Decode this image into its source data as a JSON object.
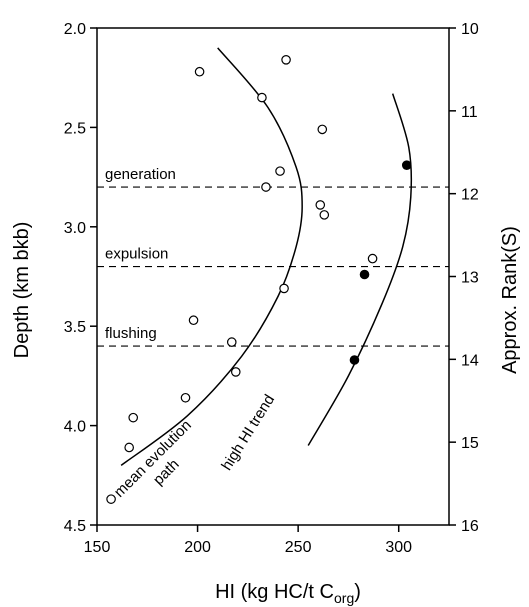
{
  "chart_data": {
    "type": "scatter",
    "xlabel": "HI (kg HC/t C",
    "xlabel_sub": "org",
    "xlabel_close": ")",
    "ylabel_left": "Depth (km bkb)",
    "ylabel_right": "Approx. Rank(S)",
    "xlim": [
      150,
      325
    ],
    "ylim": [
      2.0,
      4.5
    ],
    "y_reversed": true,
    "rank_range": [
      10,
      16
    ],
    "x_ticks": [
      "150",
      "200",
      "250",
      "300"
    ],
    "y_ticks": [
      "2.0",
      "2.5",
      "3.0",
      "3.5",
      "4.0",
      "4.5"
    ],
    "rank_ticks": [
      "10",
      "11",
      "12",
      "13",
      "14",
      "15",
      "16"
    ],
    "grid": false,
    "series": [
      {
        "marker": "open-circle",
        "points": [
          {
            "x": 244,
            "y": 2.16
          },
          {
            "x": 201,
            "y": 2.22
          },
          {
            "x": 232,
            "y": 2.35
          },
          {
            "x": 262,
            "y": 2.51
          },
          {
            "x": 241,
            "y": 2.72
          },
          {
            "x": 234,
            "y": 2.8
          },
          {
            "x": 261,
            "y": 2.89
          },
          {
            "x": 263,
            "y": 2.94
          },
          {
            "x": 243,
            "y": 3.31
          },
          {
            "x": 198,
            "y": 3.47
          },
          {
            "x": 217,
            "y": 3.58
          },
          {
            "x": 219,
            "y": 3.73
          },
          {
            "x": 194,
            "y": 3.86
          },
          {
            "x": 168,
            "y": 3.96
          },
          {
            "x": 166,
            "y": 4.11
          },
          {
            "x": 157,
            "y": 4.37
          }
        ]
      },
      {
        "marker": "filled-circle",
        "points": [
          {
            "x": 304,
            "y": 2.69
          },
          {
            "x": 283,
            "y": 3.24
          },
          {
            "x": 278,
            "y": 3.67
          }
        ]
      },
      {
        "marker": "open-circle",
        "points": [
          {
            "x": 287,
            "y": 3.16
          }
        ]
      }
    ],
    "curves": [
      {
        "label_lines": [
          "mean evolution",
          "path"
        ],
        "points": [
          [
            210,
            2.1
          ],
          [
            235,
            2.4
          ],
          [
            249,
            2.7
          ],
          [
            252,
            2.9
          ],
          [
            249,
            3.1
          ],
          [
            240,
            3.35
          ],
          [
            222,
            3.65
          ],
          [
            195,
            3.95
          ],
          [
            162,
            4.2
          ]
        ]
      },
      {
        "label_lines": [
          "high HI trend"
        ],
        "points": [
          [
            297,
            2.33
          ],
          [
            305,
            2.6
          ],
          [
            306,
            2.85
          ],
          [
            302,
            3.1
          ],
          [
            292,
            3.38
          ],
          [
            275,
            3.75
          ],
          [
            255,
            4.1
          ]
        ]
      }
    ],
    "reference_lines": [
      {
        "label": "generation",
        "y": 2.8
      },
      {
        "label": "expulsion",
        "y": 3.2
      },
      {
        "label": "flushing",
        "y": 3.6
      }
    ]
  }
}
